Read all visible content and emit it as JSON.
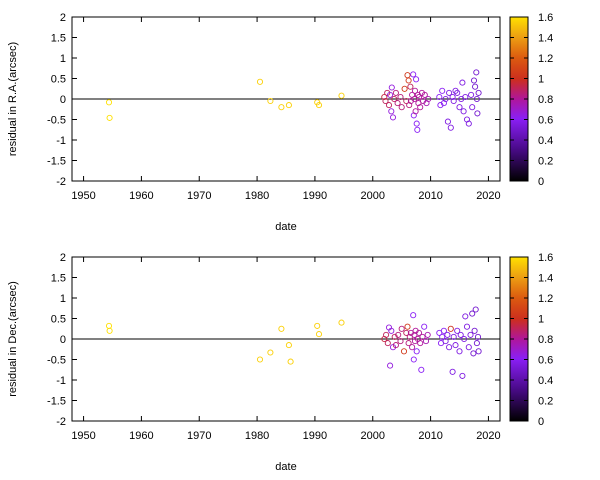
{
  "chart_data": [
    {
      "type": "scatter",
      "xlabel": "date",
      "ylabel": "residual in R.A.(arcsec)",
      "xlim": [
        1948,
        2022
      ],
      "ylim": [
        -2,
        2
      ],
      "xticks": [
        1950,
        1960,
        1970,
        1980,
        1990,
        2000,
        2010,
        2020
      ],
      "yticks": [
        -2,
        -1.5,
        -1,
        -0.5,
        0,
        0.5,
        1,
        1.5,
        2
      ],
      "zero_line": true,
      "colorbar": {
        "ticks": [
          0,
          0.2,
          0.4,
          0.6,
          0.8,
          1,
          1.2,
          1.4,
          1.6
        ],
        "range": [
          0,
          1.6
        ]
      },
      "points": [
        [
          1954.4,
          -0.08,
          1.6
        ],
        [
          1954.5,
          -0.46,
          1.6
        ],
        [
          1980.5,
          0.42,
          1.55
        ],
        [
          1982.3,
          -0.05,
          1.55
        ],
        [
          1984.2,
          -0.2,
          1.55
        ],
        [
          1985.5,
          -0.15,
          1.55
        ],
        [
          1990.4,
          -0.08,
          1.55
        ],
        [
          1990.7,
          -0.15,
          1.55
        ],
        [
          1994.6,
          0.08,
          1.55
        ],
        [
          2002.0,
          0.05,
          0.95
        ],
        [
          2002.2,
          -0.05,
          0.9
        ],
        [
          2002.5,
          0.15,
          0.9
        ],
        [
          2002.8,
          -0.15,
          0.9
        ],
        [
          2003.0,
          0.1,
          0.65
        ],
        [
          2003.2,
          -0.3,
          0.65
        ],
        [
          2003.3,
          0.28,
          0.65
        ],
        [
          2003.5,
          -0.45,
          0.65
        ],
        [
          2003.7,
          0.0,
          0.9
        ],
        [
          2004.0,
          0.15,
          0.85
        ],
        [
          2004.3,
          -0.1,
          0.85
        ],
        [
          2004.8,
          0.05,
          0.85
        ],
        [
          2005.0,
          -0.2,
          0.85
        ],
        [
          2005.5,
          0.25,
          1.05
        ],
        [
          2005.8,
          -0.05,
          0.9
        ],
        [
          2006.0,
          0.58,
          1.05
        ],
        [
          2006.2,
          0.45,
          1.05
        ],
        [
          2006.3,
          -0.15,
          0.85
        ],
        [
          2006.5,
          0.3,
          0.9
        ],
        [
          2006.6,
          -0.05,
          0.8
        ],
        [
          2006.8,
          0.1,
          0.8
        ],
        [
          2007.0,
          0.6,
          0.6
        ],
        [
          2007.1,
          -0.4,
          0.6
        ],
        [
          2007.2,
          0.0,
          0.8
        ],
        [
          2007.3,
          0.2,
          0.8
        ],
        [
          2007.4,
          -0.3,
          0.8
        ],
        [
          2007.5,
          0.48,
          0.6
        ],
        [
          2007.6,
          -0.6,
          0.6
        ],
        [
          2007.7,
          -0.75,
          0.6
        ],
        [
          2007.8,
          0.1,
          0.8
        ],
        [
          2007.9,
          -0.1,
          0.8
        ],
        [
          2008.0,
          0.05,
          0.8
        ],
        [
          2008.2,
          -0.2,
          0.8
        ],
        [
          2008.5,
          0.15,
          0.8
        ],
        [
          2008.7,
          -0.05,
          0.8
        ],
        [
          2009.0,
          0.1,
          0.8
        ],
        [
          2009.3,
          -0.1,
          0.75
        ],
        [
          2009.6,
          0.0,
          0.75
        ],
        [
          2011.5,
          0.05,
          0.6
        ],
        [
          2011.7,
          -0.15,
          0.6
        ],
        [
          2012.0,
          0.2,
          0.6
        ],
        [
          2012.3,
          -0.1,
          0.6
        ],
        [
          2012.6,
          0.0,
          0.55
        ],
        [
          2013.0,
          -0.55,
          0.55
        ],
        [
          2013.2,
          0.15,
          0.55
        ],
        [
          2013.5,
          -0.7,
          0.55
        ],
        [
          2013.8,
          0.05,
          0.55
        ],
        [
          2014.0,
          -0.05,
          0.55
        ],
        [
          2014.3,
          0.2,
          0.55
        ],
        [
          2014.6,
          0.15,
          0.55
        ],
        [
          2015.0,
          -0.2,
          0.55
        ],
        [
          2015.3,
          0.0,
          0.55
        ],
        [
          2015.5,
          0.4,
          0.55
        ],
        [
          2015.7,
          -0.3,
          0.55
        ],
        [
          2016.0,
          0.05,
          0.55
        ],
        [
          2016.3,
          -0.5,
          0.55
        ],
        [
          2016.6,
          -0.6,
          0.55
        ],
        [
          2017.0,
          0.1,
          0.55
        ],
        [
          2017.2,
          -0.2,
          0.55
        ],
        [
          2017.5,
          0.45,
          0.5
        ],
        [
          2017.7,
          0.3,
          0.5
        ],
        [
          2017.9,
          0.65,
          0.5
        ],
        [
          2018.0,
          0.0,
          0.5
        ],
        [
          2018.1,
          -0.35,
          0.5
        ],
        [
          2018.3,
          0.15,
          0.5
        ]
      ]
    },
    {
      "type": "scatter",
      "xlabel": "date",
      "ylabel": "residual in Dec.(arcsec)",
      "xlim": [
        1948,
        2022
      ],
      "ylim": [
        -2,
        2
      ],
      "xticks": [
        1950,
        1960,
        1970,
        1980,
        1990,
        2000,
        2010,
        2020
      ],
      "yticks": [
        -2,
        -1.5,
        -1,
        -0.5,
        0,
        0.5,
        1,
        1.5,
        2
      ],
      "zero_line": true,
      "colorbar": {
        "ticks": [
          0,
          0.2,
          0.4,
          0.6,
          0.8,
          1,
          1.2,
          1.4,
          1.6
        ],
        "range": [
          0,
          1.6
        ]
      },
      "points": [
        [
          1954.4,
          0.32,
          1.6
        ],
        [
          1954.5,
          0.2,
          1.6
        ],
        [
          1980.5,
          -0.5,
          1.55
        ],
        [
          1982.3,
          -0.33,
          1.55
        ],
        [
          1984.2,
          0.25,
          1.55
        ],
        [
          1985.5,
          -0.15,
          1.55
        ],
        [
          1985.8,
          -0.55,
          1.55
        ],
        [
          1990.4,
          0.32,
          1.55
        ],
        [
          1990.7,
          0.12,
          1.55
        ],
        [
          1994.6,
          0.4,
          1.55
        ],
        [
          2002.0,
          0.0,
          0.95
        ],
        [
          2002.3,
          0.1,
          0.9
        ],
        [
          2002.6,
          -0.1,
          0.9
        ],
        [
          2002.8,
          0.28,
          0.65
        ],
        [
          2003.0,
          -0.65,
          0.65
        ],
        [
          2003.2,
          0.2,
          0.65
        ],
        [
          2003.5,
          -0.2,
          0.65
        ],
        [
          2003.8,
          0.05,
          0.9
        ],
        [
          2004.0,
          -0.15,
          0.85
        ],
        [
          2004.4,
          0.1,
          0.85
        ],
        [
          2004.8,
          -0.05,
          0.85
        ],
        [
          2005.0,
          0.25,
          0.85
        ],
        [
          2005.4,
          -0.3,
          1.05
        ],
        [
          2005.8,
          0.15,
          0.9
        ],
        [
          2006.0,
          0.3,
          1.05
        ],
        [
          2006.2,
          -0.1,
          0.85
        ],
        [
          2006.4,
          0.05,
          0.85
        ],
        [
          2006.6,
          0.15,
          0.8
        ],
        [
          2006.8,
          -0.2,
          0.8
        ],
        [
          2007.0,
          0.58,
          0.6
        ],
        [
          2007.1,
          -0.5,
          0.6
        ],
        [
          2007.2,
          0.1,
          0.8
        ],
        [
          2007.3,
          -0.05,
          0.8
        ],
        [
          2007.4,
          0.2,
          0.8
        ],
        [
          2007.6,
          -0.3,
          0.6
        ],
        [
          2007.8,
          0.0,
          0.8
        ],
        [
          2008.0,
          0.15,
          0.8
        ],
        [
          2008.2,
          -0.1,
          0.8
        ],
        [
          2008.4,
          -0.75,
          0.6
        ],
        [
          2008.6,
          0.05,
          0.8
        ],
        [
          2008.9,
          0.3,
          0.6
        ],
        [
          2009.2,
          -0.05,
          0.75
        ],
        [
          2009.5,
          0.1,
          0.75
        ],
        [
          2011.5,
          0.15,
          0.6
        ],
        [
          2011.8,
          -0.1,
          0.6
        ],
        [
          2012.0,
          0.05,
          0.6
        ],
        [
          2012.3,
          0.2,
          0.6
        ],
        [
          2012.6,
          -0.05,
          0.55
        ],
        [
          2012.9,
          0.1,
          0.55
        ],
        [
          2013.2,
          -0.2,
          0.55
        ],
        [
          2013.5,
          0.25,
          1.0
        ],
        [
          2013.8,
          -0.8,
          0.55
        ],
        [
          2014.0,
          0.05,
          0.55
        ],
        [
          2014.3,
          -0.15,
          0.55
        ],
        [
          2014.6,
          0.2,
          0.55
        ],
        [
          2015.0,
          -0.3,
          0.55
        ],
        [
          2015.2,
          0.1,
          0.55
        ],
        [
          2015.5,
          -0.9,
          0.55
        ],
        [
          2015.8,
          0.0,
          0.55
        ],
        [
          2016.0,
          0.55,
          0.55
        ],
        [
          2016.3,
          0.3,
          0.55
        ],
        [
          2016.6,
          -0.2,
          0.55
        ],
        [
          2016.9,
          0.1,
          0.55
        ],
        [
          2017.2,
          0.62,
          0.5
        ],
        [
          2017.4,
          -0.35,
          0.5
        ],
        [
          2017.6,
          0.2,
          0.5
        ],
        [
          2017.8,
          0.72,
          0.5
        ],
        [
          2018.0,
          -0.1,
          0.5
        ],
        [
          2018.2,
          0.05,
          0.5
        ],
        [
          2018.3,
          -0.3,
          0.5
        ]
      ]
    }
  ]
}
